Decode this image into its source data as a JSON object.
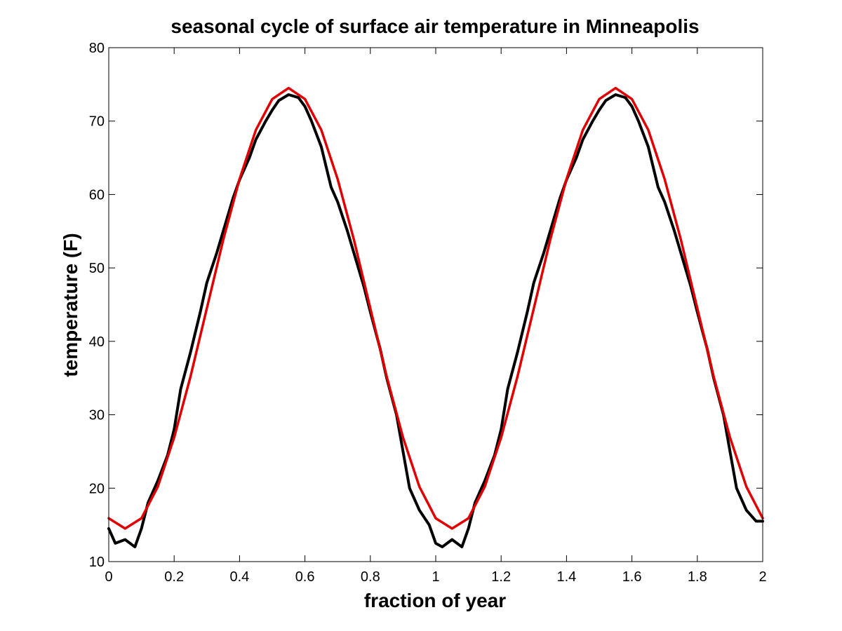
{
  "chart_data": {
    "type": "line",
    "title": "seasonal cycle of surface air temperature in Minneapolis",
    "xlabel": "fraction of year",
    "ylabel": "temperature (F)",
    "xlim": [
      0,
      2
    ],
    "ylim": [
      10,
      80
    ],
    "x_ticks": [
      0,
      0.2,
      0.4,
      0.6,
      0.8,
      1,
      1.2,
      1.4,
      1.6,
      1.8,
      2
    ],
    "x_tick_labels": [
      "0",
      "0.2",
      "0.4",
      "0.6",
      "0.8",
      "1",
      "1.2",
      "1.4",
      "1.6",
      "1.8",
      "2"
    ],
    "y_ticks": [
      10,
      20,
      30,
      40,
      50,
      60,
      70,
      80
    ],
    "y_tick_labels": [
      "10",
      "20",
      "30",
      "40",
      "50",
      "60",
      "70",
      "80"
    ],
    "grid": false,
    "legend": "none",
    "series": [
      {
        "color": "#000000",
        "x": [
          0,
          0.02,
          0.05,
          0.08,
          0.1,
          0.12,
          0.15,
          0.18,
          0.2,
          0.22,
          0.25,
          0.28,
          0.3,
          0.33,
          0.35,
          0.38,
          0.4,
          0.43,
          0.45,
          0.48,
          0.5,
          0.52,
          0.55,
          0.58,
          0.6,
          0.62,
          0.65,
          0.68,
          0.7,
          0.73,
          0.75,
          0.78,
          0.8,
          0.83,
          0.85,
          0.88,
          0.9,
          0.92,
          0.95,
          0.98,
          1.0,
          1.02,
          1.05,
          1.08,
          1.1,
          1.12,
          1.15,
          1.18,
          1.2,
          1.22,
          1.25,
          1.28,
          1.3,
          1.33,
          1.35,
          1.38,
          1.4,
          1.43,
          1.45,
          1.48,
          1.5,
          1.52,
          1.55,
          1.58,
          1.6,
          1.62,
          1.65,
          1.68,
          1.7,
          1.73,
          1.75,
          1.78,
          1.8,
          1.83,
          1.85,
          1.88,
          1.9,
          1.92,
          1.95,
          1.98,
          2.0
        ],
        "y": [
          14.5,
          12.5,
          13.0,
          12.0,
          14.5,
          18.0,
          21.0,
          24.5,
          28.0,
          33.5,
          38.5,
          44.0,
          48.0,
          52.0,
          55.0,
          59.5,
          62.0,
          65.0,
          67.5,
          70.0,
          71.5,
          72.8,
          73.6,
          73.2,
          72.0,
          70.0,
          66.5,
          61.0,
          59.0,
          55.0,
          52.0,
          47.5,
          44.0,
          39.0,
          35.0,
          30.0,
          25.0,
          20.0,
          17.0,
          15.0,
          12.5,
          12.0,
          13.0,
          12.0,
          14.5,
          18.0,
          21.0,
          24.5,
          28.0,
          33.5,
          38.5,
          44.0,
          48.0,
          52.0,
          55.0,
          59.5,
          62.0,
          65.0,
          67.5,
          70.0,
          71.5,
          72.8,
          73.6,
          73.2,
          72.0,
          70.0,
          66.5,
          61.0,
          59.0,
          55.0,
          52.0,
          47.5,
          44.0,
          39.0,
          35.0,
          30.0,
          25.0,
          20.0,
          17.0,
          15.5,
          15.5
        ]
      },
      {
        "color": "#e00000",
        "fit": {
          "form": "sinusoid",
          "mean": 44.5,
          "amplitude": 30.0,
          "period": 1.0,
          "peak_x": 0.55
        },
        "x": [
          0,
          0.05,
          0.1,
          0.15,
          0.2,
          0.25,
          0.3,
          0.35,
          0.4,
          0.45,
          0.5,
          0.55,
          0.6,
          0.65,
          0.7,
          0.75,
          0.8,
          0.85,
          0.9,
          0.95,
          1.0,
          1.05,
          1.1,
          1.15,
          1.2,
          1.25,
          1.3,
          1.35,
          1.4,
          1.45,
          1.5,
          1.55,
          1.6,
          1.65,
          1.7,
          1.75,
          1.8,
          1.85,
          1.9,
          1.95,
          2.0
        ],
        "y": [
          15.9,
          14.5,
          15.9,
          20.2,
          26.9,
          35.2,
          44.5,
          53.8,
          62.1,
          68.8,
          73.0,
          74.5,
          73.0,
          68.8,
          62.1,
          53.8,
          44.5,
          35.2,
          26.9,
          20.2,
          15.9,
          14.5,
          15.9,
          20.2,
          26.9,
          35.2,
          44.5,
          53.8,
          62.1,
          68.8,
          73.0,
          74.5,
          73.0,
          68.8,
          62.1,
          53.8,
          44.5,
          35.2,
          26.9,
          20.2,
          15.9
        ]
      }
    ]
  }
}
